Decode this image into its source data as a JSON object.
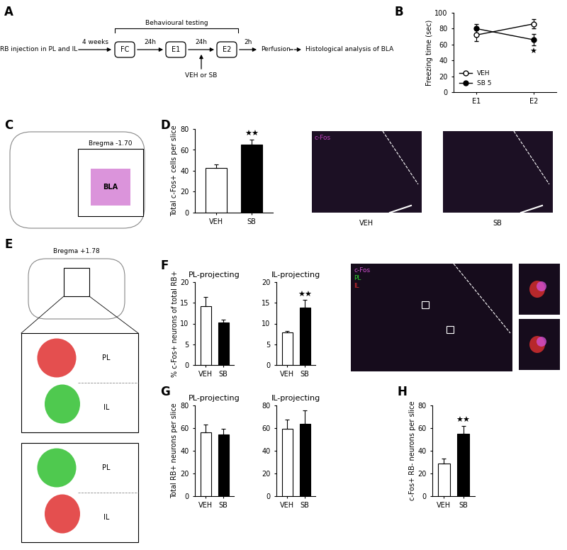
{
  "diagram": {
    "panel": "A",
    "injection": "RB injection in PL and IL",
    "delay": "4 weeks",
    "testing": "Behavioural testing",
    "steps": [
      "FC",
      "E1",
      "E2"
    ],
    "intervals": [
      "24h",
      "24h",
      "2h"
    ],
    "treatment": "VEH or SB",
    "perfusion": "Perfusion",
    "analysis": "Histological analysis of BLA"
  },
  "chart_data": [
    {
      "panel": "B",
      "type": "line",
      "y_label": "Freezing time (sec)",
      "categories": [
        "E1",
        "E2"
      ],
      "series": [
        {
          "name": "VEH",
          "color": "#ffffff",
          "marker": "o",
          "values": [
            72,
            86
          ],
          "errors": [
            8,
            6
          ]
        },
        {
          "name": "SB 5",
          "color": "#000000",
          "marker": "o",
          "values": [
            80,
            66
          ],
          "errors": [
            6,
            7
          ]
        }
      ],
      "ylim": [
        0,
        100
      ],
      "yticks": [
        0,
        20,
        40,
        60,
        80,
        100
      ],
      "legend": "lower left",
      "annotations": [
        {
          "text": "★",
          "category": "E2",
          "series": "SB 5"
        }
      ]
    },
    {
      "panel": "D",
      "type": "bar",
      "y_label": "Total c-Fos+ cells per slice",
      "categories": [
        "VEH",
        "SB"
      ],
      "values": [
        43,
        65
      ],
      "errors": [
        3,
        5
      ],
      "colors": [
        "#ffffff",
        "#000000"
      ],
      "ylim": [
        0,
        80
      ],
      "yticks": [
        0,
        20,
        40,
        60,
        80
      ],
      "annotations": [
        {
          "text": "★★",
          "category": "SB"
        }
      ]
    },
    {
      "panel": "F",
      "type": "bar",
      "title": "PL-projecting",
      "y_label": "% c-Fos+ neurons of total RB+",
      "categories": [
        "VEH",
        "SB"
      ],
      "values": [
        14.2,
        10.2
      ],
      "errors": [
        2.2,
        0.8
      ],
      "colors": [
        "#ffffff",
        "#000000"
      ],
      "ylim": [
        0,
        20
      ],
      "yticks": [
        0,
        5,
        10,
        15,
        20
      ]
    },
    {
      "panel": "F",
      "type": "bar",
      "title": "IL-projecting",
      "categories": [
        "VEH",
        "SB"
      ],
      "values": [
        7.8,
        13.8
      ],
      "errors": [
        0.4,
        1.9
      ],
      "colors": [
        "#ffffff",
        "#000000"
      ],
      "ylim": [
        0,
        20
      ],
      "yticks": [
        0,
        5,
        10,
        15,
        20
      ],
      "annotations": [
        {
          "text": "★★",
          "category": "SB"
        }
      ]
    },
    {
      "panel": "G",
      "type": "bar",
      "title": "PL-projecting",
      "y_label": "Total RB+ neurons per slice",
      "categories": [
        "VEH",
        "SB"
      ],
      "values": [
        56,
        54.5
      ],
      "errors": [
        7,
        5
      ],
      "colors": [
        "#ffffff",
        "#000000"
      ],
      "ylim": [
        0,
        80
      ],
      "yticks": [
        0,
        20,
        40,
        60,
        80
      ]
    },
    {
      "panel": "G",
      "type": "bar",
      "title": "IL-projecting",
      "categories": [
        "VEH",
        "SB"
      ],
      "values": [
        59.5,
        63.5
      ],
      "errors": [
        8,
        12
      ],
      "colors": [
        "#ffffff",
        "#000000"
      ],
      "ylim": [
        0,
        80
      ],
      "yticks": [
        0,
        20,
        40,
        60,
        80
      ]
    },
    {
      "panel": "H",
      "type": "bar",
      "y_label": "c-Fos+ RB- neurons per slice",
      "categories": [
        "VEH",
        "SB"
      ],
      "values": [
        29,
        55
      ],
      "errors": [
        4,
        7
      ],
      "colors": [
        "#ffffff",
        "#000000"
      ],
      "ylim": [
        0,
        80
      ],
      "yticks": [
        0,
        20,
        40,
        60,
        80
      ],
      "annotations": [
        {
          "text": "★★",
          "category": "SB"
        }
      ]
    }
  ],
  "images": [
    {
      "panel": "C",
      "labels": [
        "Bregma -1.70",
        "BLA"
      ],
      "colors": [
        "#d070d0"
      ]
    },
    {
      "panel": "D",
      "labels": [
        "c-Fos"
      ],
      "captions": [
        "VEH",
        "SB"
      ],
      "colors": [
        "#c040c0"
      ]
    },
    {
      "panel": "E",
      "labels": [
        "Bregma +1.78"
      ],
      "regions": [
        "PL",
        "IL"
      ],
      "colors": [
        "#e03030",
        "#30c030"
      ]
    },
    {
      "panel": "F",
      "labels": [
        "c-Fos",
        "PL",
        "IL"
      ],
      "colors": [
        "#d050d0",
        "#30d030",
        "#e03030"
      ]
    }
  ]
}
